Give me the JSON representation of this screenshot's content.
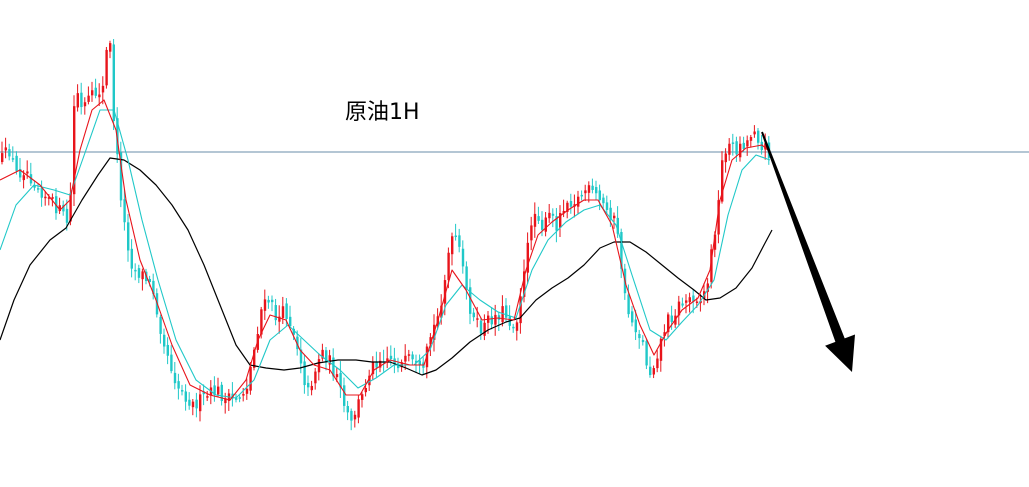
{
  "chart_data": {
    "type": "candlestick",
    "title": "原油1H",
    "xlabel": "",
    "ylabel": "",
    "ylim": [
      0,
      487
    ],
    "grid": false,
    "legend": "none",
    "horizontal_line": 152,
    "colors": {
      "up": "#e8141b",
      "down": "#20c8c8",
      "ma_fast": "#e8141b",
      "ma_mid": "#20c8c8",
      "ma_slow": "#000000",
      "hline": "#6a8ea8",
      "arrow": "#000000"
    },
    "price_path": [
      [
        0,
        160
      ],
      [
        8,
        150
      ],
      [
        16,
        175
      ],
      [
        24,
        168
      ],
      [
        32,
        180
      ],
      [
        40,
        190
      ],
      [
        48,
        200
      ],
      [
        58,
        210
      ],
      [
        66,
        222
      ],
      [
        70,
        190
      ],
      [
        74,
        80
      ],
      [
        80,
        110
      ],
      [
        88,
        100
      ],
      [
        96,
        92
      ],
      [
        102,
        88
      ],
      [
        108,
        25
      ],
      [
        112,
        110
      ],
      [
        118,
        180
      ],
      [
        124,
        230
      ],
      [
        132,
        270
      ],
      [
        142,
        275
      ],
      [
        152,
        290
      ],
      [
        160,
        330
      ],
      [
        168,
        360
      ],
      [
        176,
        385
      ],
      [
        184,
        395
      ],
      [
        192,
        405
      ],
      [
        200,
        400
      ],
      [
        208,
        395
      ],
      [
        216,
        390
      ],
      [
        224,
        400
      ],
      [
        232,
        400
      ],
      [
        240,
        395
      ],
      [
        246,
        385
      ],
      [
        252,
        355
      ],
      [
        260,
        310
      ],
      [
        268,
        300
      ],
      [
        276,
        320
      ],
      [
        284,
        310
      ],
      [
        292,
        330
      ],
      [
        300,
        360
      ],
      [
        306,
        395
      ],
      [
        314,
        370
      ],
      [
        320,
        350
      ],
      [
        328,
        360
      ],
      [
        336,
        380
      ],
      [
        344,
        410
      ],
      [
        350,
        425
      ],
      [
        356,
        405
      ],
      [
        362,
        395
      ],
      [
        368,
        370
      ],
      [
        376,
        360
      ],
      [
        384,
        355
      ],
      [
        392,
        360
      ],
      [
        400,
        365
      ],
      [
        408,
        360
      ],
      [
        416,
        370
      ],
      [
        422,
        375
      ],
      [
        428,
        340
      ],
      [
        436,
        320
      ],
      [
        442,
        290
      ],
      [
        448,
        250
      ],
      [
        454,
        235
      ],
      [
        460,
        260
      ],
      [
        466,
        295
      ],
      [
        472,
        320
      ],
      [
        480,
        330
      ],
      [
        488,
        320
      ],
      [
        496,
        315
      ],
      [
        502,
        310
      ],
      [
        508,
        320
      ],
      [
        514,
        330
      ],
      [
        518,
        300
      ],
      [
        524,
        270
      ],
      [
        530,
        220
      ],
      [
        536,
        210
      ],
      [
        542,
        230
      ],
      [
        548,
        215
      ],
      [
        556,
        225
      ],
      [
        562,
        205
      ],
      [
        568,
        200
      ],
      [
        576,
        200
      ],
      [
        584,
        190
      ],
      [
        590,
        192
      ],
      [
        598,
        200
      ],
      [
        606,
        210
      ],
      [
        612,
        215
      ],
      [
        618,
        245
      ],
      [
        624,
        300
      ],
      [
        630,
        320
      ],
      [
        636,
        330
      ],
      [
        642,
        345
      ],
      [
        648,
        375
      ],
      [
        654,
        360
      ],
      [
        660,
        340
      ],
      [
        666,
        320
      ],
      [
        672,
        315
      ],
      [
        678,
        305
      ],
      [
        686,
        300
      ],
      [
        694,
        295
      ],
      [
        700,
        300
      ],
      [
        706,
        285
      ],
      [
        712,
        240
      ],
      [
        718,
        200
      ],
      [
        722,
        150
      ],
      [
        728,
        145
      ],
      [
        734,
        150
      ],
      [
        740,
        145
      ],
      [
        748,
        140
      ],
      [
        754,
        125
      ],
      [
        760,
        150
      ],
      [
        766,
        148
      ],
      [
        770,
        155
      ]
    ],
    "ma_fast": [
      [
        0,
        180
      ],
      [
        20,
        170
      ],
      [
        40,
        185
      ],
      [
        60,
        210
      ],
      [
        70,
        200
      ],
      [
        80,
        150
      ],
      [
        92,
        110
      ],
      [
        104,
        100
      ],
      [
        116,
        130
      ],
      [
        126,
        200
      ],
      [
        140,
        260
      ],
      [
        156,
        300
      ],
      [
        172,
        345
      ],
      [
        190,
        385
      ],
      [
        210,
        395
      ],
      [
        230,
        400
      ],
      [
        246,
        380
      ],
      [
        258,
        340
      ],
      [
        270,
        315
      ],
      [
        286,
        320
      ],
      [
        300,
        350
      ],
      [
        314,
        365
      ],
      [
        330,
        370
      ],
      [
        346,
        395
      ],
      [
        360,
        395
      ],
      [
        374,
        370
      ],
      [
        390,
        360
      ],
      [
        410,
        365
      ],
      [
        424,
        365
      ],
      [
        438,
        320
      ],
      [
        452,
        270
      ],
      [
        466,
        290
      ],
      [
        482,
        320
      ],
      [
        498,
        318
      ],
      [
        514,
        320
      ],
      [
        526,
        270
      ],
      [
        538,
        235
      ],
      [
        552,
        222
      ],
      [
        568,
        210
      ],
      [
        584,
        200
      ],
      [
        598,
        200
      ],
      [
        612,
        225
      ],
      [
        626,
        285
      ],
      [
        640,
        325
      ],
      [
        654,
        355
      ],
      [
        668,
        330
      ],
      [
        682,
        310
      ],
      [
        698,
        298
      ],
      [
        710,
        270
      ],
      [
        720,
        200
      ],
      [
        732,
        160
      ],
      [
        746,
        148
      ],
      [
        762,
        145
      ],
      [
        770,
        152
      ]
    ],
    "ma_mid": [
      [
        0,
        250
      ],
      [
        16,
        205
      ],
      [
        34,
        185
      ],
      [
        54,
        190
      ],
      [
        70,
        195
      ],
      [
        86,
        150
      ],
      [
        100,
        110
      ],
      [
        114,
        110
      ],
      [
        128,
        160
      ],
      [
        142,
        220
      ],
      [
        158,
        280
      ],
      [
        176,
        340
      ],
      [
        196,
        380
      ],
      [
        216,
        395
      ],
      [
        236,
        398
      ],
      [
        254,
        380
      ],
      [
        270,
        340
      ],
      [
        288,
        325
      ],
      [
        304,
        340
      ],
      [
        320,
        355
      ],
      [
        340,
        370
      ],
      [
        358,
        388
      ],
      [
        376,
        378
      ],
      [
        394,
        365
      ],
      [
        414,
        365
      ],
      [
        430,
        350
      ],
      [
        446,
        305
      ],
      [
        462,
        285
      ],
      [
        480,
        300
      ],
      [
        498,
        312
      ],
      [
        516,
        318
      ],
      [
        532,
        270
      ],
      [
        548,
        240
      ],
      [
        566,
        222
      ],
      [
        584,
        210
      ],
      [
        600,
        205
      ],
      [
        616,
        225
      ],
      [
        632,
        275
      ],
      [
        650,
        330
      ],
      [
        666,
        340
      ],
      [
        682,
        322
      ],
      [
        698,
        305
      ],
      [
        714,
        280
      ],
      [
        728,
        215
      ],
      [
        742,
        170
      ],
      [
        756,
        155
      ],
      [
        770,
        160
      ]
    ],
    "ma_slow": [
      [
        0,
        340
      ],
      [
        14,
        300
      ],
      [
        30,
        265
      ],
      [
        50,
        240
      ],
      [
        66,
        228
      ],
      [
        82,
        200
      ],
      [
        98,
        175
      ],
      [
        110,
        158
      ],
      [
        124,
        160
      ],
      [
        140,
        170
      ],
      [
        156,
        185
      ],
      [
        172,
        205
      ],
      [
        188,
        230
      ],
      [
        204,
        265
      ],
      [
        220,
        305
      ],
      [
        236,
        345
      ],
      [
        250,
        365
      ],
      [
        266,
        368
      ],
      [
        284,
        370
      ],
      [
        300,
        368
      ],
      [
        318,
        363
      ],
      [
        338,
        360
      ],
      [
        356,
        360
      ],
      [
        372,
        362
      ],
      [
        390,
        362
      ],
      [
        406,
        368
      ],
      [
        422,
        375
      ],
      [
        436,
        370
      ],
      [
        452,
        358
      ],
      [
        470,
        342
      ],
      [
        488,
        330
      ],
      [
        506,
        322
      ],
      [
        520,
        318
      ],
      [
        536,
        300
      ],
      [
        552,
        288
      ],
      [
        568,
        278
      ],
      [
        584,
        265
      ],
      [
        600,
        248
      ],
      [
        614,
        242
      ],
      [
        630,
        242
      ],
      [
        646,
        252
      ],
      [
        662,
        265
      ],
      [
        678,
        278
      ],
      [
        694,
        290
      ],
      [
        706,
        300
      ],
      [
        720,
        298
      ],
      [
        736,
        288
      ],
      [
        752,
        268
      ],
      [
        764,
        245
      ],
      [
        772,
        230
      ]
    ],
    "arrow": {
      "from": [
        762,
        132
      ],
      "to": [
        852,
        372
      ]
    }
  }
}
